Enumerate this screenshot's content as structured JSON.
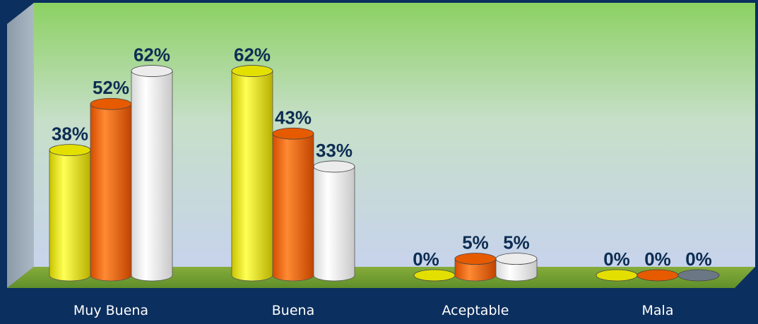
{
  "chart_data": {
    "type": "bar",
    "categories": [
      "Muy Buena",
      "Buena",
      "Aceptable",
      "Mala"
    ],
    "series": [
      {
        "values": [
          38,
          62,
          0,
          0
        ],
        "labels": [
          "38%",
          "62%",
          "0%",
          "0%"
        ]
      },
      {
        "values": [
          52,
          43,
          5,
          0
        ],
        "labels": [
          "52%",
          "43%",
          "5%",
          "0%"
        ]
      },
      {
        "values": [
          62,
          33,
          5,
          0
        ],
        "labels": [
          "62%",
          "33%",
          "5%",
          "0%"
        ]
      }
    ],
    "ylim": [
      0,
      70
    ],
    "grid": false,
    "colors": {
      "series": [
        "#f7f700",
        "#ff6a00",
        "#ffffff"
      ],
      "mala_third": "#6b7785",
      "background": "#0b2f5e",
      "label_text": "#0d2d52",
      "category_text": "#ffffff"
    }
  }
}
